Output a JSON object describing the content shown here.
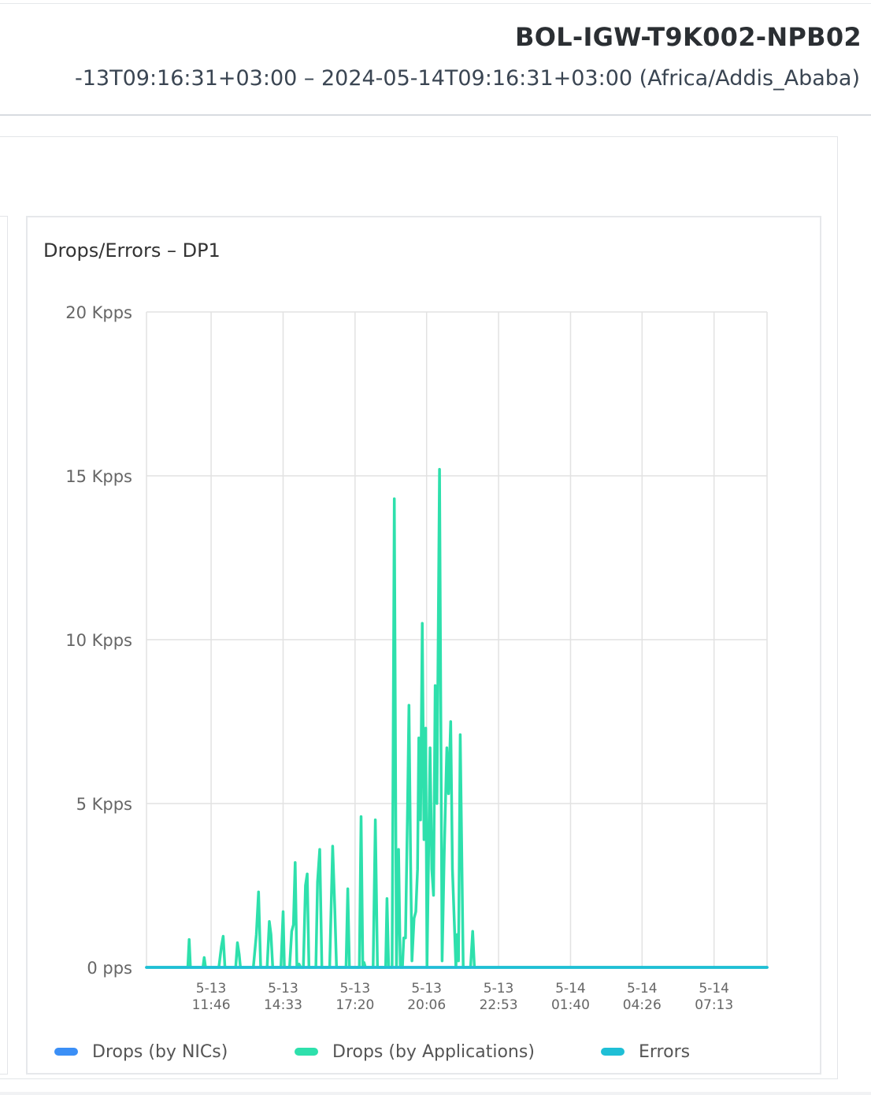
{
  "header": {
    "device_name": "BOL-IGW-T9K002-NPB02",
    "time_range": "-13T09:16:31+03:00 – 2024-05-14T09:16:31+03:00 (Africa/Addis_Ababa)"
  },
  "chart_data": {
    "type": "line",
    "title": "Drops/Errors – DP1",
    "ylim": [
      0,
      20000
    ],
    "y_unit": "pps",
    "y_ticks": [
      {
        "value": 0,
        "label": "0 pps"
      },
      {
        "value": 5000,
        "label": "5 Kpps"
      },
      {
        "value": 10000,
        "label": "10 Kpps"
      },
      {
        "value": 15000,
        "label": "15 Kpps"
      },
      {
        "value": 20000,
        "label": "20 Kpps"
      }
    ],
    "x_range": [
      "2024-05-13T09:16",
      "2024-05-14T09:16"
    ],
    "x_ticks": [
      {
        "time": "2024-05-13T11:46",
        "label": [
          "5-13",
          "11:46"
        ]
      },
      {
        "time": "2024-05-13T14:33",
        "label": [
          "5-13",
          "14:33"
        ]
      },
      {
        "time": "2024-05-13T17:20",
        "label": [
          "5-13",
          "17:20"
        ]
      },
      {
        "time": "2024-05-13T20:06",
        "label": [
          "5-13",
          "20:06"
        ]
      },
      {
        "time": "2024-05-13T22:53",
        "label": [
          "5-13",
          "22:53"
        ]
      },
      {
        "time": "2024-05-14T01:40",
        "label": [
          "5-14",
          "01:40"
        ]
      },
      {
        "time": "2024-05-14T04:26",
        "label": [
          "5-14",
          "04:26"
        ]
      },
      {
        "time": "2024-05-14T07:13",
        "label": [
          "5-14",
          "07:13"
        ]
      }
    ],
    "grid": true,
    "legend_position": "bottom",
    "series": [
      {
        "name": "Drops (by NICs)",
        "color": "#3b8ff6",
        "points": [
          [
            "2024-05-13T09:16",
            0
          ],
          [
            "2024-05-14T09:16",
            0
          ]
        ]
      },
      {
        "name": "Drops (by Applications)",
        "color": "#2ee0ac",
        "points": [
          [
            "2024-05-13T09:16",
            0
          ],
          [
            "2024-05-13T10:52",
            0
          ],
          [
            "2024-05-13T10:55",
            850
          ],
          [
            "2024-05-13T10:58",
            0
          ],
          [
            "2024-05-13T11:27",
            0
          ],
          [
            "2024-05-13T11:30",
            300
          ],
          [
            "2024-05-13T11:33",
            0
          ],
          [
            "2024-05-13T12:04",
            0
          ],
          [
            "2024-05-13T12:10",
            650
          ],
          [
            "2024-05-13T12:14",
            950
          ],
          [
            "2024-05-13T12:18",
            0
          ],
          [
            "2024-05-13T12:43",
            0
          ],
          [
            "2024-05-13T12:47",
            750
          ],
          [
            "2024-05-13T12:51",
            400
          ],
          [
            "2024-05-13T12:54",
            0
          ],
          [
            "2024-05-13T13:24",
            0
          ],
          [
            "2024-05-13T13:31",
            1000
          ],
          [
            "2024-05-13T13:36",
            2300
          ],
          [
            "2024-05-13T13:41",
            0
          ],
          [
            "2024-05-13T13:56",
            0
          ],
          [
            "2024-05-13T14:01",
            1400
          ],
          [
            "2024-05-13T14:05",
            1000
          ],
          [
            "2024-05-13T14:09",
            0
          ],
          [
            "2024-05-13T14:28",
            0
          ],
          [
            "2024-05-13T14:33",
            1700
          ],
          [
            "2024-05-13T14:36",
            0
          ],
          [
            "2024-05-13T14:48",
            0
          ],
          [
            "2024-05-13T14:53",
            1100
          ],
          [
            "2024-05-13T14:57",
            1300
          ],
          [
            "2024-05-13T15:01",
            3200
          ],
          [
            "2024-05-13T15:05",
            0
          ],
          [
            "2024-05-13T15:10",
            100
          ],
          [
            "2024-05-13T15:14",
            0
          ],
          [
            "2024-05-13T15:20",
            0
          ],
          [
            "2024-05-13T15:25",
            2500
          ],
          [
            "2024-05-13T15:29",
            2850
          ],
          [
            "2024-05-13T15:33",
            0
          ],
          [
            "2024-05-13T15:49",
            0
          ],
          [
            "2024-05-13T15:53",
            2600
          ],
          [
            "2024-05-13T15:58",
            3600
          ],
          [
            "2024-05-13T16:03",
            0
          ],
          [
            "2024-05-13T16:21",
            0
          ],
          [
            "2024-05-13T16:28",
            3700
          ],
          [
            "2024-05-13T16:33",
            1800
          ],
          [
            "2024-05-13T16:37",
            0
          ],
          [
            "2024-05-13T16:59",
            0
          ],
          [
            "2024-05-13T17:03",
            2400
          ],
          [
            "2024-05-13T17:07",
            0
          ],
          [
            "2024-05-13T17:30",
            0
          ],
          [
            "2024-05-13T17:34",
            4600
          ],
          [
            "2024-05-13T17:38",
            0
          ],
          [
            "2024-05-13T17:41",
            150
          ],
          [
            "2024-05-13T17:44",
            0
          ],
          [
            "2024-05-13T18:02",
            0
          ],
          [
            "2024-05-13T18:07",
            4500
          ],
          [
            "2024-05-13T18:12",
            0
          ],
          [
            "2024-05-13T18:31",
            0
          ],
          [
            "2024-05-13T18:34",
            2100
          ],
          [
            "2024-05-13T18:38",
            0
          ],
          [
            "2024-05-13T18:46",
            0
          ],
          [
            "2024-05-13T18:51",
            14300
          ],
          [
            "2024-05-13T18:56",
            0
          ],
          [
            "2024-05-13T19:01",
            3600
          ],
          [
            "2024-05-13T19:05",
            0
          ],
          [
            "2024-05-13T19:10",
            0
          ],
          [
            "2024-05-13T19:13",
            900
          ],
          [
            "2024-05-13T19:17",
            900
          ],
          [
            "2024-05-13T19:22",
            5000
          ],
          [
            "2024-05-13T19:25",
            8000
          ],
          [
            "2024-05-13T19:29",
            3200
          ],
          [
            "2024-05-13T19:32",
            200
          ],
          [
            "2024-05-13T19:37",
            1500
          ],
          [
            "2024-05-13T19:41",
            1700
          ],
          [
            "2024-05-13T19:45",
            3000
          ],
          [
            "2024-05-13T19:48",
            7000
          ],
          [
            "2024-05-13T19:52",
            4500
          ],
          [
            "2024-05-13T19:56",
            10500
          ],
          [
            "2024-05-13T20:00",
            3900
          ],
          [
            "2024-05-13T20:04",
            7300
          ],
          [
            "2024-05-13T20:07",
            0
          ],
          [
            "2024-05-13T20:11",
            3800
          ],
          [
            "2024-05-13T20:14",
            6700
          ],
          [
            "2024-05-13T20:18",
            3000
          ],
          [
            "2024-05-13T20:22",
            2200
          ],
          [
            "2024-05-13T20:26",
            8600
          ],
          [
            "2024-05-13T20:30",
            5000
          ],
          [
            "2024-05-13T20:36",
            15200
          ],
          [
            "2024-05-13T20:42",
            200
          ],
          [
            "2024-05-13T20:47",
            3500
          ],
          [
            "2024-05-13T20:53",
            6700
          ],
          [
            "2024-05-13T20:57",
            5300
          ],
          [
            "2024-05-13T21:02",
            7500
          ],
          [
            "2024-05-13T21:06",
            3000
          ],
          [
            "2024-05-13T21:10",
            1500
          ],
          [
            "2024-05-13T21:14",
            0
          ],
          [
            "2024-05-13T21:17",
            1000
          ],
          [
            "2024-05-13T21:20",
            200
          ],
          [
            "2024-05-13T21:24",
            7100
          ],
          [
            "2024-05-13T21:28",
            3000
          ],
          [
            "2024-05-13T21:31",
            0
          ],
          [
            "2024-05-13T21:48",
            0
          ],
          [
            "2024-05-13T21:53",
            1100
          ],
          [
            "2024-05-13T21:57",
            0
          ],
          [
            "2024-05-14T09:16",
            0
          ]
        ]
      },
      {
        "name": "Errors",
        "color": "#1fbfd6",
        "points": [
          [
            "2024-05-13T09:16",
            0
          ],
          [
            "2024-05-14T09:16",
            0
          ]
        ]
      }
    ]
  }
}
